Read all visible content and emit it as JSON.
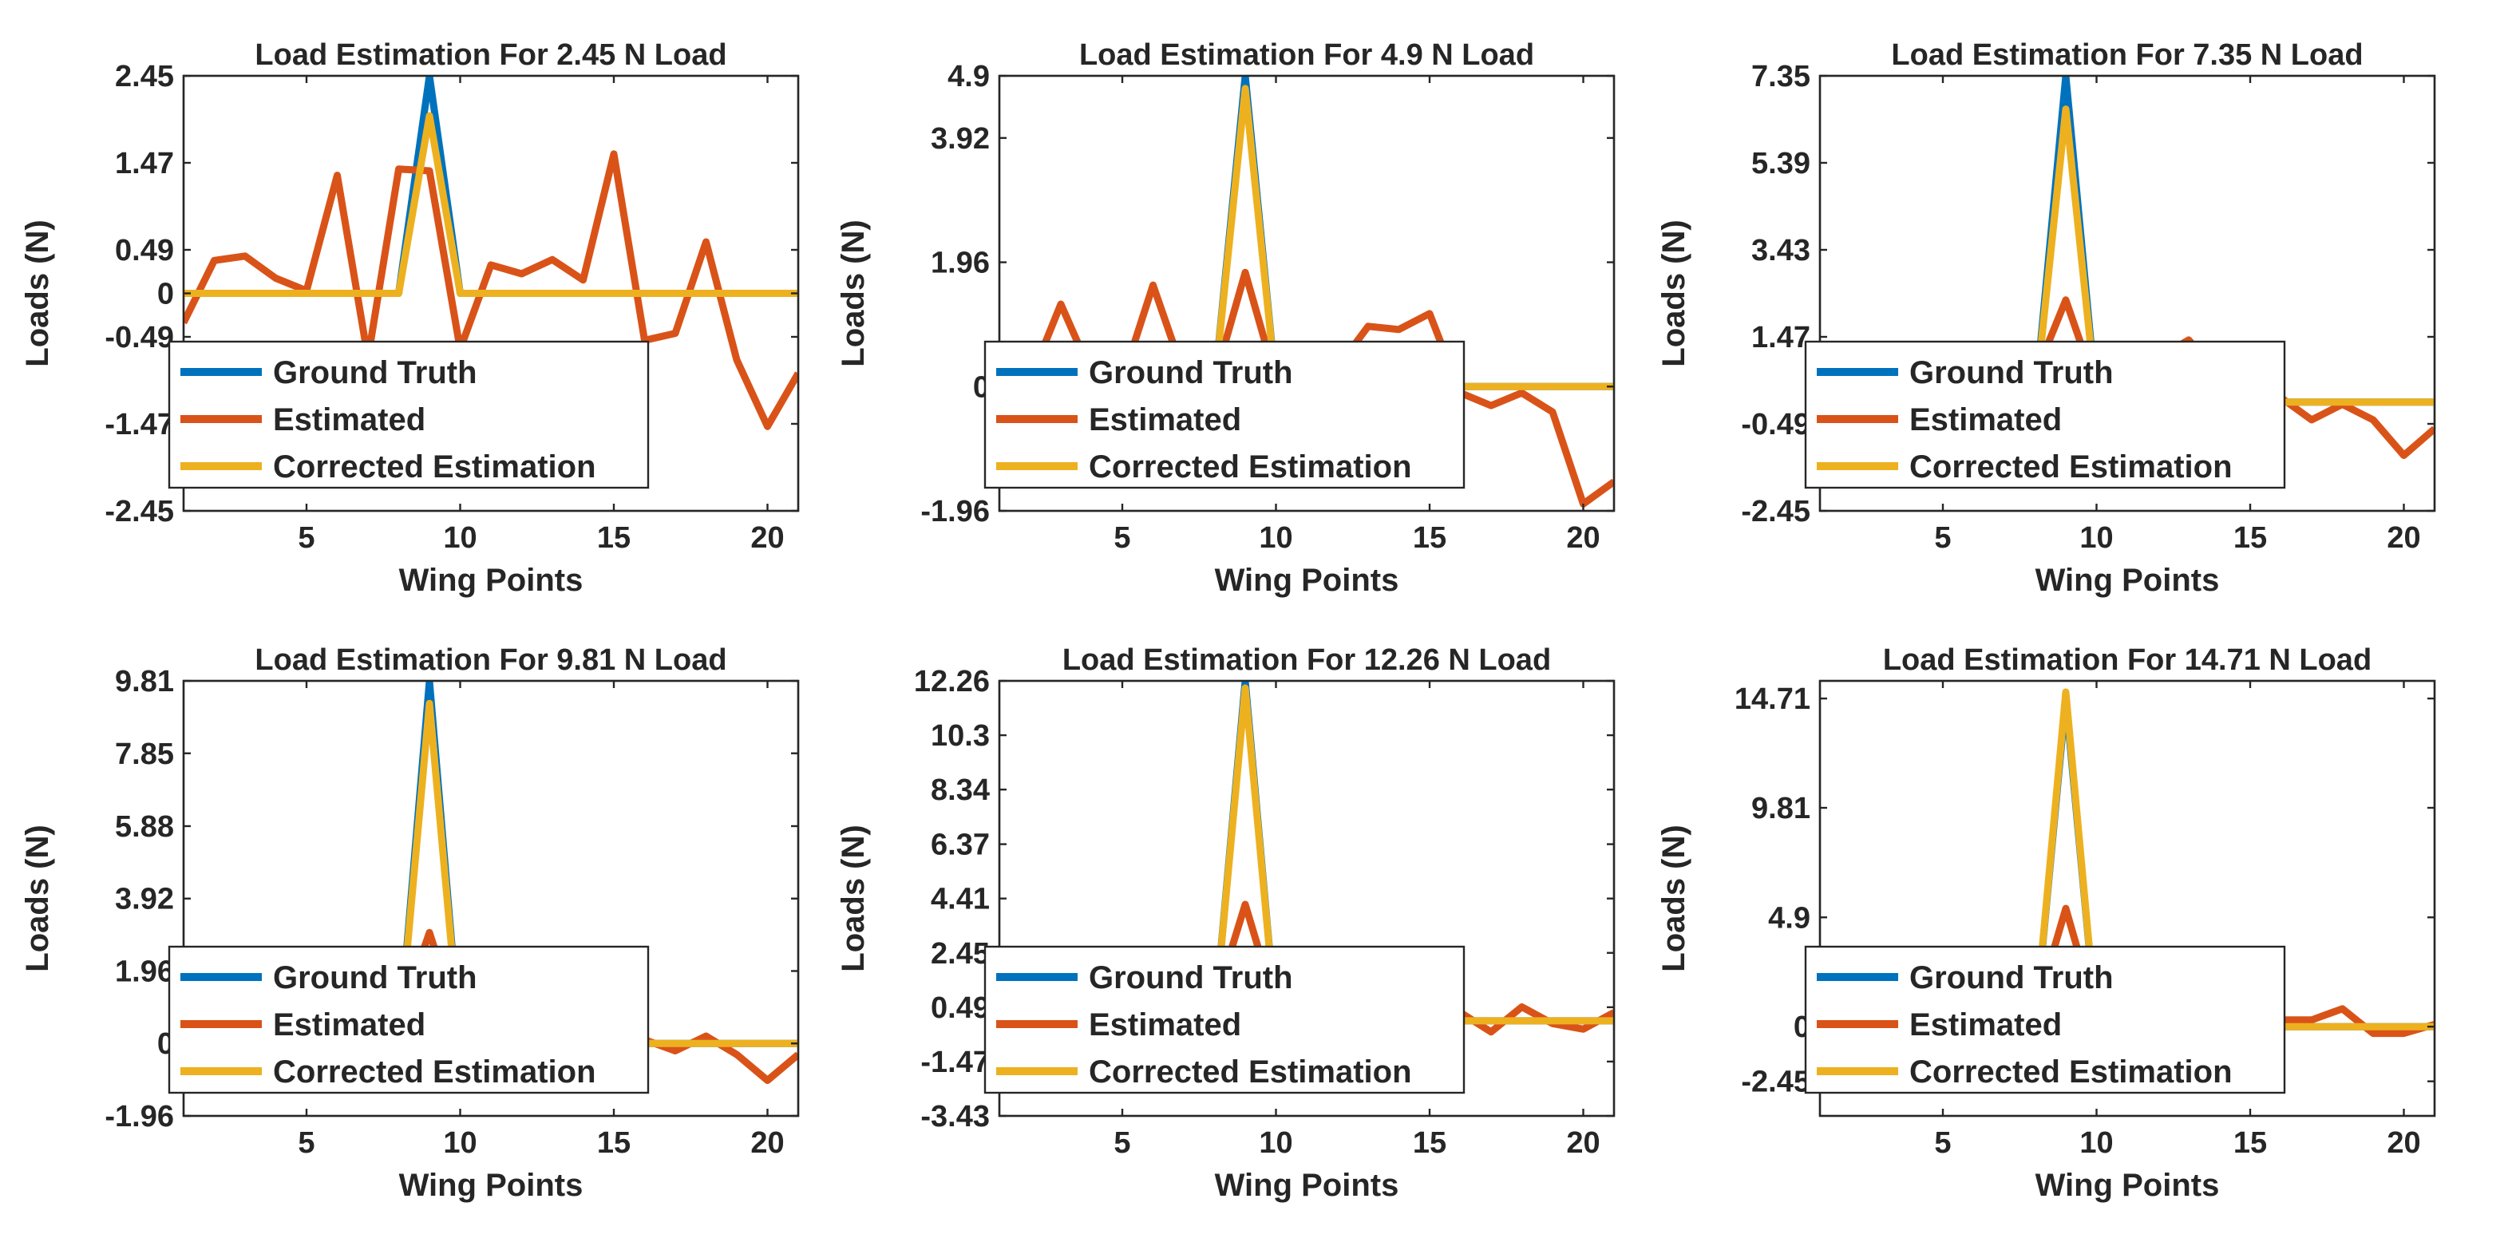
{
  "colors": {
    "ground_truth": "#0072BD",
    "estimated": "#D95319",
    "corrected": "#EDB120"
  },
  "chart_data": [
    {
      "type": "line",
      "title": "Load Estimation For 2.45 N Load",
      "xlabel": "Wing Points",
      "ylabel": "Loads (N)",
      "xlim": [
        1,
        21
      ],
      "ylim": [
        -2.45,
        2.45
      ],
      "xticks": [
        5,
        10,
        15,
        20
      ],
      "yticks": [
        -2.45,
        -1.47,
        -0.49,
        0,
        0.49,
        1.47,
        2.45
      ],
      "ytick_labels": [
        "-2.45",
        "-1.47",
        "-0.49",
        "0",
        "0.49",
        "1.47",
        "2.45"
      ],
      "legend": [
        "Ground Truth",
        "Estimated",
        "Corrected Estimation"
      ],
      "legend_location": "bottom-left",
      "grid": false,
      "x": [
        1,
        2,
        3,
        4,
        5,
        6,
        7,
        8,
        9,
        10,
        11,
        12,
        13,
        14,
        15,
        16,
        17,
        18,
        19,
        20,
        21
      ],
      "series": [
        {
          "name": "Ground Truth",
          "values": [
            0,
            0,
            0,
            0,
            0,
            0,
            0,
            0,
            2.45,
            0,
            0,
            0,
            0,
            0,
            0,
            0,
            0,
            0,
            0,
            0,
            0
          ]
        },
        {
          "name": "Estimated",
          "values": [
            -0.33,
            0.37,
            0.42,
            0.17,
            0.03,
            1.33,
            -0.73,
            1.4,
            1.38,
            -0.63,
            0.32,
            0.22,
            0.38,
            0.15,
            1.57,
            -0.53,
            -0.45,
            0.58,
            -0.75,
            -1.5,
            -0.9
          ]
        },
        {
          "name": "Corrected Estimation",
          "values": [
            0,
            0,
            0,
            0,
            0,
            0,
            0,
            0,
            2.0,
            0,
            0,
            0,
            0,
            0,
            0,
            0,
            0,
            0,
            0,
            0,
            0
          ]
        }
      ]
    },
    {
      "type": "line",
      "title": "Load Estimation For 4.9 N Load",
      "xlabel": "Wing Points",
      "ylabel": "Loads (N)",
      "xlim": [
        1,
        21
      ],
      "ylim": [
        -1.96,
        4.9
      ],
      "xticks": [
        5,
        10,
        15,
        20
      ],
      "yticks": [
        -1.96,
        0,
        1.96,
        3.92,
        4.9
      ],
      "ytick_labels": [
        "-1.96",
        "0",
        "1.96",
        "3.92",
        "4.9"
      ],
      "legend": [
        "Ground Truth",
        "Estimated",
        "Corrected Estimation"
      ],
      "legend_location": "bottom-left",
      "grid": false,
      "x": [
        1,
        2,
        3,
        4,
        5,
        6,
        7,
        8,
        9,
        10,
        11,
        12,
        13,
        14,
        15,
        16,
        17,
        18,
        19,
        20,
        21
      ],
      "series": [
        {
          "name": "Ground Truth",
          "values": [
            0,
            0,
            0,
            0,
            0,
            0,
            0,
            0,
            4.9,
            0,
            0,
            0,
            0,
            0,
            0,
            0,
            0,
            0,
            0,
            0,
            0
          ]
        },
        {
          "name": "Estimated",
          "values": [
            -0.4,
            0.1,
            1.3,
            0.2,
            0.1,
            1.6,
            0.2,
            0.1,
            1.8,
            0.1,
            0.2,
            0.3,
            0.95,
            0.9,
            1.15,
            -0.1,
            -0.3,
            -0.1,
            -0.4,
            -1.85,
            -1.5
          ]
        },
        {
          "name": "Corrected Estimation",
          "values": [
            0,
            0,
            0,
            0,
            0,
            0,
            0,
            0,
            4.7,
            0,
            0,
            0,
            0,
            0,
            0,
            0,
            0,
            0,
            0,
            0,
            0
          ]
        }
      ]
    },
    {
      "type": "line",
      "title": "Load Estimation For 7.35 N Load",
      "xlabel": "Wing Points",
      "ylabel": "Loads (N)",
      "xlim": [
        1,
        21
      ],
      "ylim": [
        -2.45,
        7.35
      ],
      "xticks": [
        5,
        10,
        15,
        20
      ],
      "yticks": [
        -2.45,
        -0.49,
        1.47,
        3.43,
        5.39,
        7.35
      ],
      "ytick_labels": [
        "-2.45",
        "-0.49",
        "1.47",
        "3.43",
        "5.39",
        "7.35"
      ],
      "legend": [
        "Ground Truth",
        "Estimated",
        "Corrected Estimation"
      ],
      "legend_location": "bottom-left",
      "grid": false,
      "x": [
        1,
        2,
        3,
        4,
        5,
        6,
        7,
        8,
        9,
        10,
        11,
        12,
        13,
        14,
        15,
        16,
        17,
        18,
        19,
        20,
        21
      ],
      "series": [
        {
          "name": "Ground Truth",
          "values": [
            0,
            0,
            0,
            0,
            0,
            0,
            0,
            0,
            7.35,
            0,
            0,
            0,
            0,
            0,
            0,
            0,
            0,
            0,
            0,
            0,
            0
          ]
        },
        {
          "name": "Estimated",
          "values": [
            0.15,
            -0.3,
            -0.2,
            0.1,
            0.3,
            0.2,
            0.1,
            0.6,
            2.3,
            0.3,
            0.7,
            1.0,
            1.4,
            0.6,
            0.3,
            0.1,
            -0.4,
            -0.05,
            -0.4,
            -1.2,
            -0.6
          ]
        },
        {
          "name": "Corrected Estimation",
          "values": [
            0,
            0,
            0,
            0,
            0,
            0,
            0,
            0,
            6.6,
            0,
            0,
            0,
            0,
            0,
            0,
            0,
            0,
            0,
            0,
            0,
            0
          ]
        }
      ]
    },
    {
      "type": "line",
      "title": "Load Estimation For 9.81 N Load",
      "xlabel": "Wing Points",
      "ylabel": "Loads (N)",
      "xlim": [
        1,
        21
      ],
      "ylim": [
        -1.96,
        9.81
      ],
      "xticks": [
        5,
        10,
        15,
        20
      ],
      "yticks": [
        -1.96,
        0,
        1.96,
        3.92,
        5.88,
        7.85,
        9.81
      ],
      "ytick_labels": [
        "-1.96",
        "0",
        "1.96",
        "3.92",
        "5.88",
        "7.85",
        "9.81"
      ],
      "legend": [
        "Ground Truth",
        "Estimated",
        "Corrected Estimation"
      ],
      "legend_location": "bottom-left",
      "grid": false,
      "x": [
        1,
        2,
        3,
        4,
        5,
        6,
        7,
        8,
        9,
        10,
        11,
        12,
        13,
        14,
        15,
        16,
        17,
        18,
        19,
        20,
        21
      ],
      "series": [
        {
          "name": "Ground Truth",
          "values": [
            0,
            0,
            0,
            0,
            0,
            0,
            0,
            0,
            9.81,
            0,
            0,
            0,
            0,
            0,
            0,
            0,
            0,
            0,
            0,
            0,
            0
          ]
        },
        {
          "name": "Estimated",
          "values": [
            0.8,
            0.3,
            0.4,
            0.2,
            0.3,
            0.5,
            0.3,
            0.6,
            3.0,
            0.4,
            0.5,
            0.3,
            0.4,
            0.2,
            0.3,
            0.1,
            -0.2,
            0.2,
            -0.3,
            -1.0,
            -0.3
          ]
        },
        {
          "name": "Corrected Estimation",
          "values": [
            0,
            0,
            0,
            0,
            0,
            0,
            0,
            0,
            9.2,
            0,
            0,
            0,
            0,
            0,
            0,
            0,
            0,
            0,
            0,
            0,
            0
          ]
        }
      ]
    },
    {
      "type": "line",
      "title": "Load Estimation For 12.26 N Load",
      "xlabel": "Wing Points",
      "ylabel": "Loads (N)",
      "xlim": [
        1,
        21
      ],
      "ylim": [
        -3.43,
        12.26
      ],
      "xticks": [
        5,
        10,
        15,
        20
      ],
      "yticks": [
        -3.43,
        -1.47,
        0.49,
        2.45,
        4.41,
        6.37,
        8.34,
        10.3,
        12.26
      ],
      "ytick_labels": [
        "-3.43",
        "-1.47",
        "0.49",
        "2.45",
        "4.41",
        "6.37",
        "8.34",
        "10.3",
        "12.26"
      ],
      "legend": [
        "Ground Truth",
        "Estimated",
        "Corrected Estimation"
      ],
      "legend_location": "bottom-left",
      "grid": false,
      "x": [
        1,
        2,
        3,
        4,
        5,
        6,
        7,
        8,
        9,
        10,
        11,
        12,
        13,
        14,
        15,
        16,
        17,
        18,
        19,
        20,
        21
      ],
      "series": [
        {
          "name": "Ground Truth",
          "values": [
            0,
            0,
            0,
            0,
            0,
            0,
            0,
            0,
            12.26,
            0,
            0,
            0,
            0,
            0,
            0,
            0,
            0,
            0,
            0,
            0,
            0
          ]
        },
        {
          "name": "Estimated",
          "values": [
            0.8,
            0.5,
            0.4,
            0.3,
            0.4,
            0.5,
            0.3,
            0.6,
            4.2,
            0.5,
            0.4,
            0.3,
            0.4,
            0.3,
            0.4,
            0.3,
            -0.4,
            0.5,
            -0.1,
            -0.3,
            0.3
          ]
        },
        {
          "name": "Corrected Estimation",
          "values": [
            0,
            0,
            0,
            0,
            0,
            0,
            0,
            0,
            12.0,
            0,
            0,
            0,
            0,
            0,
            0,
            0,
            0,
            0,
            0,
            0,
            0
          ]
        }
      ]
    },
    {
      "type": "line",
      "title": "Load Estimation For 14.71 N Load",
      "xlabel": "Wing Points",
      "ylabel": "Loads (N)",
      "xlim": [
        1,
        21
      ],
      "ylim": [
        -4.0,
        15.5
      ],
      "xticks": [
        5,
        10,
        15,
        20
      ],
      "yticks": [
        -2.45,
        0,
        4.9,
        9.81,
        14.71
      ],
      "ytick_labels": [
        "-2.45",
        "0",
        "4.9",
        "9.81",
        "14.71"
      ],
      "legend": [
        "Ground Truth",
        "Estimated",
        "Corrected Estimation"
      ],
      "legend_location": "bottom-left",
      "grid": false,
      "x": [
        1,
        2,
        3,
        4,
        5,
        6,
        7,
        8,
        9,
        10,
        11,
        12,
        13,
        14,
        15,
        16,
        17,
        18,
        19,
        20,
        21
      ],
      "series": [
        {
          "name": "Ground Truth",
          "values": [
            0,
            0,
            0,
            0,
            0,
            0,
            0,
            0,
            14.71,
            0,
            0,
            0,
            0,
            0,
            0,
            0,
            0,
            0,
            0,
            0,
            0
          ]
        },
        {
          "name": "Estimated",
          "values": [
            1.3,
            0.5,
            0.6,
            0.3,
            0.4,
            0.5,
            0.3,
            0.6,
            5.3,
            0.5,
            0.4,
            0.3,
            0.4,
            0.3,
            0.4,
            0.3,
            0.3,
            0.8,
            -0.3,
            -0.3,
            0.1
          ]
        },
        {
          "name": "Corrected Estimation",
          "values": [
            0,
            0,
            0,
            0,
            0,
            0,
            0,
            0,
            15.0,
            0,
            0,
            0,
            0,
            0,
            0,
            0,
            0,
            0,
            0,
            0,
            0
          ]
        }
      ]
    }
  ]
}
